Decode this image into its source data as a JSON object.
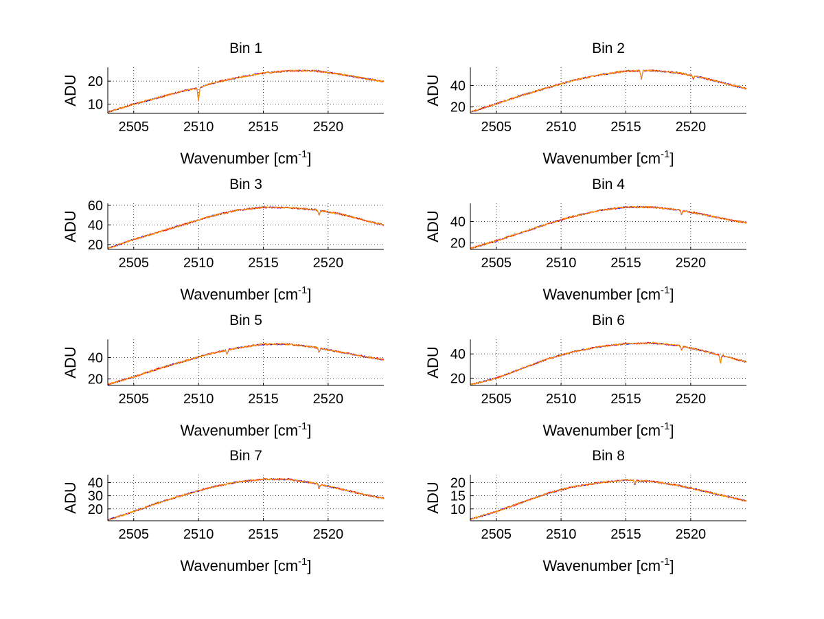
{
  "figure": {
    "background": "#ffffff",
    "series_colors": [
      "#0000ff",
      "#ff0000",
      "#ffa500"
    ]
  },
  "chart_data": [
    {
      "type": "line",
      "title": "Bin 1",
      "xlabel": "Wavenumber [cm",
      "xlabel_sup": "-1",
      "xlabel_tail": "]",
      "ylabel": "ADU",
      "xlim": [
        2503.0,
        2524.3
      ],
      "ylim": [
        6,
        26
      ],
      "xticks": [
        2505,
        2510,
        2515,
        2520
      ],
      "xtick_labels": [
        "2505",
        "2510",
        "2515",
        "2520"
      ],
      "yticks": [
        10,
        20
      ],
      "ytick_labels": [
        "10",
        "20"
      ],
      "grid": true,
      "x": [
        2503.0,
        2505.0,
        2507.0,
        2509.0,
        2510.0,
        2511.0,
        2513.0,
        2515.0,
        2517.0,
        2519.0,
        2521.0,
        2523.0,
        2524.3
      ],
      "y": [
        6.5,
        10.0,
        13.0,
        16.0,
        17.0,
        19.0,
        21.5,
        23.5,
        24.5,
        24.5,
        23.0,
        21.0,
        19.8
      ],
      "dips": [
        [
          2510.0,
          11.5
        ]
      ]
    },
    {
      "type": "line",
      "title": "Bin 2",
      "xlabel": "Wavenumber [cm",
      "xlabel_sup": "-1",
      "xlabel_tail": "]",
      "ylabel": "ADU",
      "xlim": [
        2503.0,
        2524.3
      ],
      "ylim": [
        14,
        57
      ],
      "xticks": [
        2505,
        2510,
        2515,
        2520
      ],
      "xtick_labels": [
        "2505",
        "2510",
        "2515",
        "2520"
      ],
      "yticks": [
        20,
        40
      ],
      "ytick_labels": [
        "20",
        "40"
      ],
      "grid": true,
      "x": [
        2503.0,
        2505.0,
        2507.0,
        2509.0,
        2511.0,
        2513.0,
        2515.0,
        2517.0,
        2519.0,
        2521.0,
        2523.0,
        2524.3
      ],
      "y": [
        15.0,
        23.0,
        31.0,
        38.0,
        45.0,
        50.0,
        53.5,
        54.0,
        52.0,
        47.0,
        41.0,
        37.0
      ],
      "dips": [
        [
          2516.2,
          46.0
        ],
        [
          2520.2,
          46.5
        ]
      ]
    },
    {
      "type": "line",
      "title": "Bin 3",
      "xlabel": "Wavenumber [cm",
      "xlabel_sup": "-1",
      "xlabel_tail": "]",
      "ylabel": "ADU",
      "xlim": [
        2503.0,
        2524.3
      ],
      "ylim": [
        15,
        62
      ],
      "xticks": [
        2505,
        2510,
        2515,
        2520
      ],
      "xtick_labels": [
        "2505",
        "2510",
        "2515",
        "2520"
      ],
      "yticks": [
        20,
        40,
        60
      ],
      "ytick_labels": [
        "20",
        "40",
        "60"
      ],
      "grid": true,
      "x": [
        2503.0,
        2505.0,
        2507.0,
        2509.0,
        2511.0,
        2513.0,
        2515.0,
        2517.0,
        2519.0,
        2521.0,
        2523.0,
        2524.3
      ],
      "y": [
        16.0,
        25.0,
        33.0,
        41.0,
        49.0,
        55.0,
        58.0,
        57.5,
        55.5,
        51.0,
        44.0,
        40.0
      ],
      "dips": [
        [
          2519.3,
          50.0
        ]
      ]
    },
    {
      "type": "line",
      "title": "Bin 4",
      "xlabel": "Wavenumber [cm",
      "xlabel_sup": "-1",
      "xlabel_tail": "]",
      "ylabel": "ADU",
      "xlim": [
        2503.0,
        2524.3
      ],
      "ylim": [
        14,
        57
      ],
      "xticks": [
        2505,
        2510,
        2515,
        2520
      ],
      "xtick_labels": [
        "2505",
        "2510",
        "2515",
        "2520"
      ],
      "yticks": [
        20,
        40
      ],
      "ytick_labels": [
        "20",
        "40"
      ],
      "grid": true,
      "x": [
        2503.0,
        2505.0,
        2507.0,
        2509.0,
        2511.0,
        2513.0,
        2515.0,
        2517.0,
        2519.0,
        2521.0,
        2523.0,
        2524.3
      ],
      "y": [
        15.0,
        22.0,
        30.0,
        38.0,
        45.0,
        50.5,
        53.5,
        53.5,
        51.0,
        46.5,
        41.5,
        39.0
      ],
      "dips": [
        [
          2519.3,
          47.0
        ]
      ]
    },
    {
      "type": "line",
      "title": "Bin 5",
      "xlabel": "Wavenumber [cm",
      "xlabel_sup": "-1",
      "xlabel_tail": "]",
      "ylabel": "ADU",
      "xlim": [
        2503.0,
        2524.3
      ],
      "ylim": [
        14,
        57
      ],
      "xticks": [
        2505,
        2510,
        2515,
        2520
      ],
      "xtick_labels": [
        "2505",
        "2510",
        "2515",
        "2520"
      ],
      "yticks": [
        20,
        40
      ],
      "ytick_labels": [
        "20",
        "40"
      ],
      "grid": true,
      "x": [
        2503.0,
        2505.0,
        2507.0,
        2509.0,
        2511.0,
        2513.0,
        2515.0,
        2517.0,
        2519.0,
        2521.0,
        2523.0,
        2524.3
      ],
      "y": [
        15.0,
        22.0,
        30.0,
        37.0,
        44.0,
        49.0,
        52.5,
        52.5,
        49.5,
        45.0,
        40.5,
        38.0
      ],
      "dips": [
        [
          2512.2,
          43.0
        ],
        [
          2519.3,
          44.5
        ]
      ]
    },
    {
      "type": "line",
      "title": "Bin 6",
      "xlabel": "Wavenumber [cm",
      "xlabel_sup": "-1",
      "xlabel_tail": "]",
      "ylabel": "ADU",
      "xlim": [
        2503.0,
        2524.3
      ],
      "ylim": [
        14,
        52
      ],
      "xticks": [
        2505,
        2510,
        2515,
        2520
      ],
      "xtick_labels": [
        "2505",
        "2510",
        "2515",
        "2520"
      ],
      "yticks": [
        20,
        40
      ],
      "ytick_labels": [
        "20",
        "40"
      ],
      "grid": true,
      "x": [
        2503.0,
        2505.0,
        2507.0,
        2509.0,
        2511.0,
        2513.0,
        2515.0,
        2517.0,
        2519.0,
        2521.0,
        2523.0,
        2524.3
      ],
      "y": [
        14.5,
        20.0,
        28.0,
        36.0,
        42.0,
        46.0,
        48.5,
        49.0,
        47.0,
        42.5,
        37.0,
        33.5
      ],
      "dips": [
        [
          2519.3,
          43.0
        ],
        [
          2522.3,
          32.0
        ]
      ]
    },
    {
      "type": "line",
      "title": "Bin 7",
      "xlabel": "Wavenumber [cm",
      "xlabel_sup": "-1",
      "xlabel_tail": "]",
      "ylabel": "ADU",
      "xlim": [
        2503.0,
        2524.3
      ],
      "ylim": [
        11,
        46
      ],
      "xticks": [
        2505,
        2510,
        2515,
        2520
      ],
      "xtick_labels": [
        "2505",
        "2510",
        "2515",
        "2520"
      ],
      "yticks": [
        20,
        30,
        40
      ],
      "ytick_labels": [
        "20",
        "30",
        "40"
      ],
      "grid": true,
      "x": [
        2503.0,
        2505.0,
        2507.0,
        2509.0,
        2511.0,
        2513.0,
        2515.0,
        2517.0,
        2519.0,
        2521.0,
        2523.0,
        2524.3
      ],
      "y": [
        11.5,
        18.0,
        25.0,
        31.0,
        36.5,
        40.5,
        42.5,
        42.5,
        39.5,
        35.0,
        30.5,
        28.0
      ],
      "dips": [
        [
          2519.3,
          35.5
        ]
      ]
    },
    {
      "type": "line",
      "title": "Bin 8",
      "xlabel": "Wavenumber [cm",
      "xlabel_sup": "-1",
      "xlabel_tail": "]",
      "ylabel": "ADU",
      "xlim": [
        2503.0,
        2524.3
      ],
      "ylim": [
        5.5,
        23
      ],
      "xticks": [
        2505,
        2510,
        2515,
        2520
      ],
      "xtick_labels": [
        "2505",
        "2510",
        "2515",
        "2520"
      ],
      "yticks": [
        10,
        15,
        20
      ],
      "ytick_labels": [
        "10",
        "15",
        "20"
      ],
      "grid": true,
      "x": [
        2503.0,
        2505.0,
        2507.0,
        2509.0,
        2511.0,
        2513.0,
        2515.0,
        2517.0,
        2519.0,
        2521.0,
        2523.0,
        2524.3
      ],
      "y": [
        6.0,
        9.0,
        12.5,
        16.0,
        18.5,
        20.0,
        21.0,
        20.5,
        19.0,
        16.8,
        14.5,
        13.0
      ],
      "dips": [
        [
          2515.7,
          19.2
        ]
      ]
    }
  ]
}
